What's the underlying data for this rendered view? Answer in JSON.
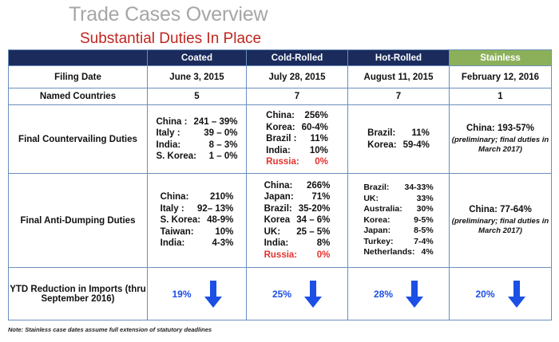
{
  "header": {
    "title": "Trade Cases Overview",
    "subtitle": "Substantial Duties In Place"
  },
  "columns": [
    "",
    "Coated",
    "Cold-Rolled",
    "Hot-Rolled",
    "Stainless"
  ],
  "rows": {
    "filing_date": {
      "label": "Filing Date",
      "values": [
        "June 3, 2015",
        "July 28, 2015",
        "August 11, 2015",
        "February 12, 2016"
      ]
    },
    "named_countries": {
      "label": "Named Countries",
      "values": [
        "5",
        "7",
        "7",
        "1"
      ]
    },
    "countervailing": {
      "label": "Final Countervailing Duties",
      "coated": [
        {
          "country": "China :",
          "duty": "241 – 39%"
        },
        {
          "country": "Italy :",
          "duty": "39 – 0%"
        },
        {
          "country": "India:",
          "duty": "8 – 3%"
        },
        {
          "country": "S. Korea:",
          "duty": "1 – 0%"
        }
      ],
      "cold_rolled": [
        {
          "country": "China:",
          "duty": "256%"
        },
        {
          "country": "Korea:",
          "duty": "60-4%"
        },
        {
          "country": "Brazil :",
          "duty": "11%"
        },
        {
          "country": "India:",
          "duty": "10%"
        },
        {
          "country": "Russia:",
          "duty": "0%",
          "highlight": true
        }
      ],
      "hot_rolled": [
        {
          "country": "Brazil:",
          "duty": "11%"
        },
        {
          "country": "Korea:",
          "duty": "59-4%"
        }
      ],
      "stainless": {
        "main": "China: 193-57%",
        "note": "(preliminary; final duties in March 2017)"
      }
    },
    "antidumping": {
      "label": "Final Anti-Dumping Duties",
      "coated": [
        {
          "country": "China:",
          "duty": "210%"
        },
        {
          "country": "Italy :",
          "duty": "92– 13%"
        },
        {
          "country": "S. Korea:",
          "duty": "48-9%"
        },
        {
          "country": "Taiwan:",
          "duty": "10%"
        },
        {
          "country": "India:",
          "duty": "4-3%"
        }
      ],
      "cold_rolled": [
        {
          "country": "China:",
          "duty": "266%"
        },
        {
          "country": "Japan:",
          "duty": "71%"
        },
        {
          "country": "Brazil:",
          "duty": "35-20%"
        },
        {
          "country": "Korea",
          "duty": "34 – 6%"
        },
        {
          "country": "UK:",
          "duty": "25 – 5%"
        },
        {
          "country": "India:",
          "duty": "8%"
        },
        {
          "country": "Russia:",
          "duty": "0%",
          "highlight": true
        }
      ],
      "hot_rolled": [
        {
          "country": "Brazil:",
          "duty": "34-33%"
        },
        {
          "country": "UK:",
          "duty": "33%"
        },
        {
          "country": "Australia:",
          "duty": "30%"
        },
        {
          "country": "Korea:",
          "duty": "9-5%"
        },
        {
          "country": "Japan:",
          "duty": "8-5%"
        },
        {
          "country": "Turkey:",
          "duty": "7-4%"
        },
        {
          "country": "Netherlands:",
          "duty": "4%"
        }
      ],
      "stainless": {
        "main": "China: 77-64%",
        "note": "(preliminary; final duties in March 2017)"
      }
    },
    "ytd": {
      "label": "YTD Reduction in Imports (thru September 2016)",
      "values": [
        "19%",
        "25%",
        "28%",
        "20%"
      ],
      "icon": "down-arrow-icon",
      "arrow_color": "#1c4fe6"
    }
  },
  "colors": {
    "navy_header": "#1a2b5c",
    "green_header": "#8cb05a",
    "title_gray": "#a6a6a6",
    "subtitle_red": "#c0251f",
    "highlight_red": "#e3312d",
    "grid_blue": "#6b8ebc"
  },
  "footnote": "Note: Stainless case dates assume full extension of statutory deadlines"
}
